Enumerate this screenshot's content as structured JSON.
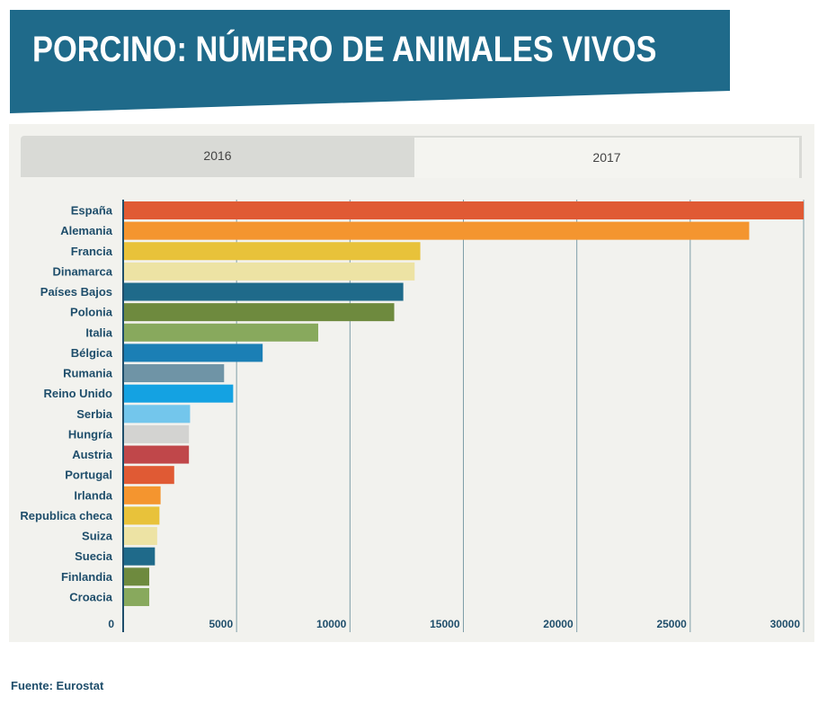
{
  "title": "PORCINO: NÚMERO DE ANIMALES VIVOS",
  "tabs": [
    {
      "label": "2016"
    },
    {
      "label": "2017"
    }
  ],
  "source": "Fuente: Eurostat",
  "colors": {
    "banner": "#1f6a8a",
    "axis": "#1f4e6b",
    "grid": "#7f9ea8"
  },
  "chart_data": {
    "type": "bar",
    "orientation": "horizontal",
    "title": "",
    "xlabel": "",
    "ylabel": "",
    "xlim": [
      0,
      30000
    ],
    "grid": true,
    "ticks": [
      0,
      5000,
      10000,
      15000,
      20000,
      25000,
      30000
    ],
    "tick_labels": [
      "0",
      "5000",
      "10000",
      "15000",
      "20000",
      "25000",
      "30000"
    ],
    "categories": [
      "España",
      "Alemania",
      "Francia",
      "Dinamarca",
      "Países Bajos",
      "Polonia",
      "Italia",
      "Bélgica",
      "Rumania",
      "Reino Unido",
      "Serbia",
      "Hungría",
      "Austria",
      "Portugal",
      "Irlanda",
      "Republica checa",
      "Suiza",
      "Suecia",
      "Finlandia",
      "Croacia"
    ],
    "values": [
      30000,
      27600,
      13100,
      12850,
      12350,
      11950,
      8600,
      6150,
      4450,
      4850,
      2950,
      2900,
      2900,
      2250,
      1650,
      1600,
      1500,
      1400,
      1150,
      1150
    ],
    "bar_colors": [
      "#e05a34",
      "#f4952f",
      "#e8c23a",
      "#ede3a4",
      "#1f6a8a",
      "#6e8a3e",
      "#88a95d",
      "#1b7fb5",
      "#6f94a6",
      "#14a2e2",
      "#73c6ec",
      "#d3d3d1",
      "#c0474a",
      "#e05a34",
      "#f4952f",
      "#e8c23a",
      "#ede3a4",
      "#1f6a8a",
      "#6e8a3e",
      "#88a95d"
    ]
  }
}
